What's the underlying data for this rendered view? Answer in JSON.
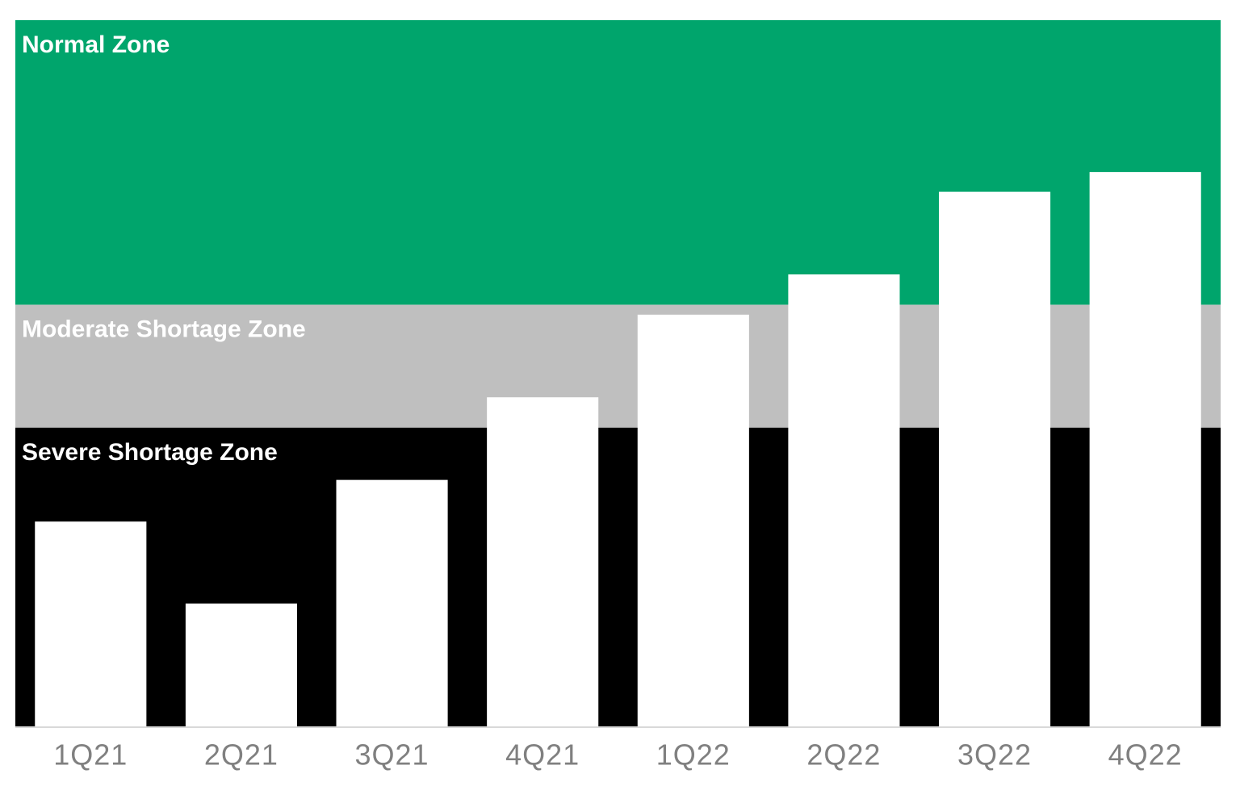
{
  "chart_data": {
    "type": "bar",
    "categories": [
      "1Q21",
      "2Q21",
      "3Q21",
      "4Q21",
      "1Q22",
      "2Q22",
      "3Q22",
      "4Q22"
    ],
    "values": [
      29.0,
      17.4,
      34.9,
      46.6,
      58.3,
      64.0,
      75.7,
      78.5
    ],
    "color": "#ffffff",
    "ylim": [
      0,
      100
    ],
    "zones": [
      {
        "label": "Normal Zone",
        "from": 59.7,
        "to": 100,
        "color": "#00a56c"
      },
      {
        "label": "Moderate Shortage Zone",
        "from": 42.3,
        "to": 59.7,
        "color": "#bfbfbf"
      },
      {
        "label": "Severe Shortage Zone",
        "from": 0,
        "to": 42.3,
        "color": "#000000"
      }
    ]
  }
}
